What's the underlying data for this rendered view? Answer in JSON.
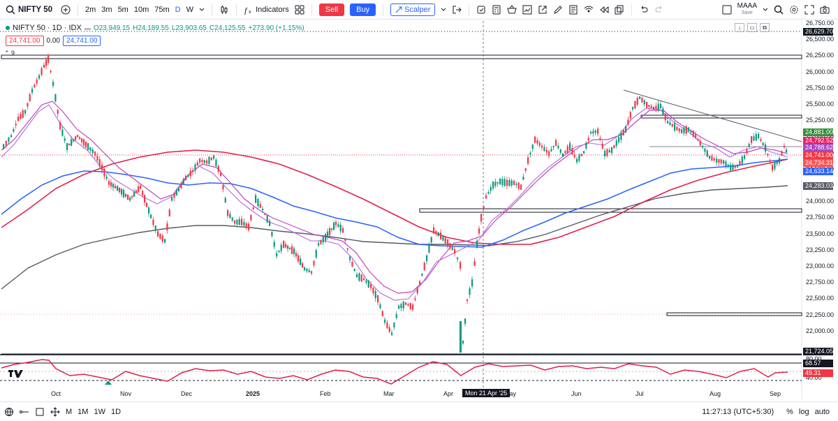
{
  "toolbar": {
    "symbol": "NIFTY 50",
    "intervals": [
      "2m",
      "3m",
      "5m",
      "10m",
      "75m",
      "D",
      "W"
    ],
    "active_interval": "D",
    "indicators_label": "Indicators",
    "sell_label": "Sell",
    "buy_label": "Buy",
    "scalper_label": "Scalper",
    "layout_name": "MAAA",
    "layout_sub": "Save"
  },
  "legend": {
    "title": "NIFTY 50 · 1D · IDX",
    "open": "O23,949.15",
    "high": "H24,189.55",
    "low": "L23,903.65",
    "close": "C24,125.55",
    "change": "+273.90 (+1.15%)",
    "bid": "24,741.00",
    "spread": "0.00",
    "ask": "24,741.00",
    "collapsed_count": "9"
  },
  "price_axis": {
    "labels": [
      "26,750.00",
      "26,500.00",
      "26,250.00",
      "26,000.00",
      "25,750.00",
      "25,500.00",
      "25,250.00",
      "25,000.00",
      "24,750.00",
      "24,500.00",
      "24,250.00",
      "24,000.00",
      "23,750.00",
      "23,500.00",
      "23,250.00",
      "23,000.00",
      "22,750.00",
      "22,500.00",
      "22,250.00",
      "22,000.00"
    ],
    "tags": [
      {
        "text": "26,629.70",
        "color": "#131722"
      },
      {
        "text": "24,881.00",
        "color": "#388e3c"
      },
      {
        "text": "24,792.52",
        "color": "#e91e63"
      },
      {
        "text": "24,788.62",
        "color": "#ab47bc"
      },
      {
        "text": "24,741.00",
        "color": "#f23645"
      },
      {
        "text": "24,734.31",
        "color": "#ff5252"
      },
      {
        "text": "24,633.14",
        "color": "#2962ff"
      },
      {
        "text": "24,283.03",
        "color": "#555a64"
      },
      {
        "text": "21,724.05",
        "color": "#131722"
      }
    ]
  },
  "rsi": {
    "labels": [
      "80.00",
      "40.00"
    ],
    "tags": [
      {
        "text": "68.57",
        "color": "#131722"
      },
      {
        "text": "49.31",
        "color": "#f23645"
      }
    ]
  },
  "time_axis": {
    "labels": [
      "Oct",
      "Nov",
      "Dec",
      "2025",
      "Feb",
      "Mar",
      "Apr",
      "May",
      "Jun",
      "Jul",
      "Aug",
      "Sep"
    ],
    "crosshair": "Mon 21 Apr '25"
  },
  "bottombar": {
    "ranges": [
      "M",
      "1M",
      "1W",
      "1D"
    ],
    "clock": "11:27:13 (UTC+5:30)",
    "percent": "%",
    "log": "log",
    "auto": "auto"
  },
  "chart_data": {
    "type": "candlestick",
    "symbol": "NIFTY 50",
    "timeframe": "1D",
    "y_range": [
      21700,
      26800
    ],
    "series_visible": [
      "price",
      "SMA short",
      "EMA 20",
      "SMA 50",
      "EMA 100",
      "SMA 200",
      "RSI"
    ],
    "last_values": {
      "price": 24741.0,
      "sma200": 24283.03,
      "rsi": 49.31,
      "rsi_ma": 68.57
    }
  },
  "colors": {
    "up": "#089981",
    "down": "#f23645",
    "accent": "#2962ff"
  }
}
